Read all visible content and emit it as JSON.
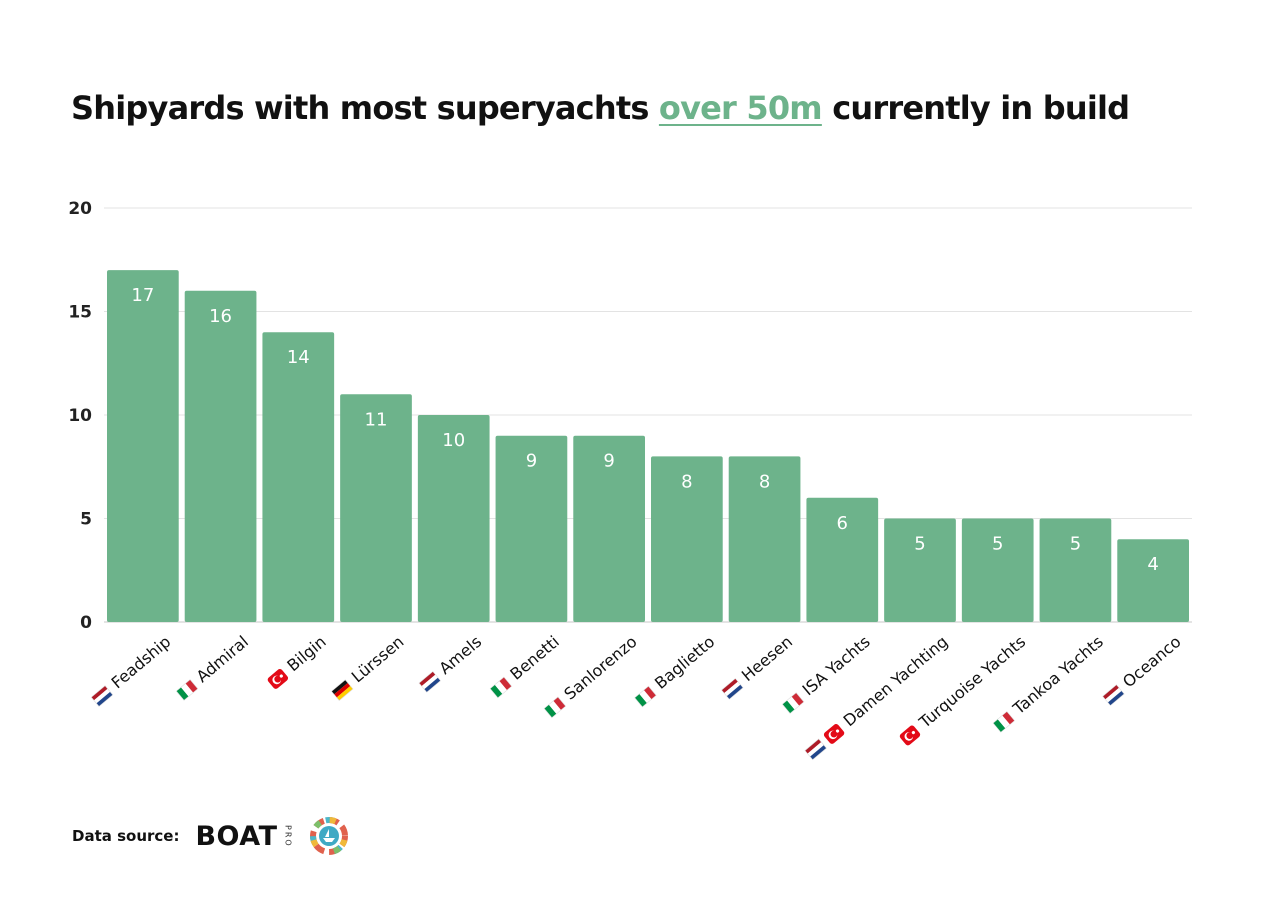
{
  "title": {
    "before": "Shipyards with most superyachts ",
    "highlight": "over 50m",
    "after": " currently in build"
  },
  "colors": {
    "bar": "#6db38b",
    "highlight": "#6db38b",
    "grid": "#e3e3e3",
    "axis": "#c8c8c8"
  },
  "chart_data": {
    "type": "bar",
    "title": "Shipyards with most superyachts over 50m currently in build",
    "xlabel": "",
    "ylabel": "",
    "ylim": [
      0,
      20
    ],
    "yticks": [
      0,
      5,
      10,
      15,
      20
    ],
    "grid": true,
    "legend": "none",
    "categories": [
      "Feadship",
      "Admiral",
      "Bilgin",
      "Lürssen",
      "Amels",
      "Benetti",
      "Sanlorenzo",
      "Baglietto",
      "Heesen",
      "ISA Yachts",
      "Damen Yachting",
      "Turquoise Yachts",
      "Tankoa Yachts",
      "Oceanco"
    ],
    "values": [
      17,
      16,
      14,
      11,
      10,
      9,
      9,
      8,
      8,
      6,
      5,
      5,
      5,
      4
    ],
    "flags": [
      [
        "nl"
      ],
      [
        "it"
      ],
      [
        "tr"
      ],
      [
        "de"
      ],
      [
        "nl"
      ],
      [
        "it"
      ],
      [
        "it"
      ],
      [
        "it"
      ],
      [
        "nl"
      ],
      [
        "it"
      ],
      [
        "nl",
        "tr"
      ],
      [
        "tr"
      ],
      [
        "it"
      ],
      [
        "nl"
      ]
    ],
    "data_labels": true
  },
  "source": {
    "label": "Data source:",
    "brand": "BOAT",
    "brand_suffix": "PRO"
  }
}
